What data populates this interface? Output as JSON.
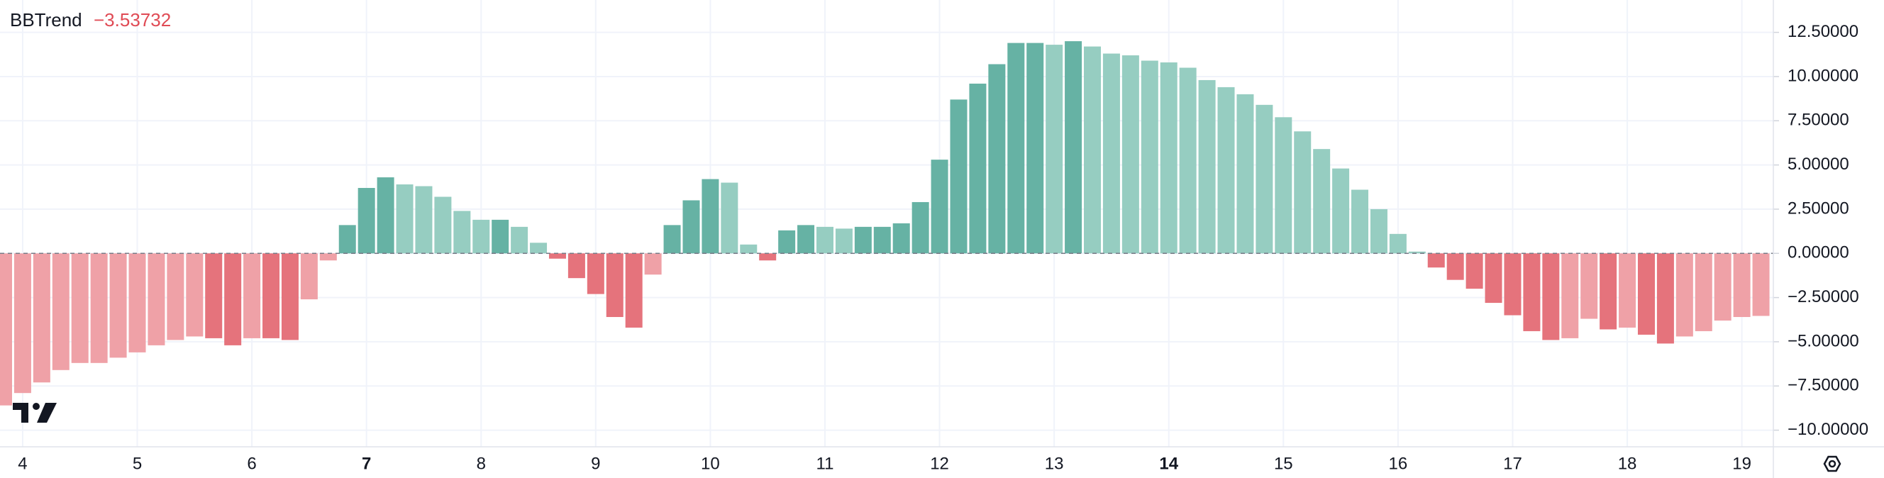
{
  "chart_data": {
    "type": "bar",
    "indicator": {
      "name": "BBTrend",
      "value": -3.53732,
      "label": "−3.53732"
    },
    "categories": [
      null,
      "4",
      null,
      null,
      null,
      null,
      null,
      "5",
      null,
      null,
      null,
      null,
      null,
      "6",
      null,
      null,
      null,
      null,
      null,
      "7",
      null,
      null,
      null,
      null,
      null,
      "8",
      null,
      null,
      null,
      null,
      null,
      "9",
      null,
      null,
      null,
      null,
      null,
      "10",
      null,
      null,
      null,
      null,
      null,
      "11",
      null,
      null,
      null,
      null,
      null,
      "12",
      null,
      null,
      null,
      null,
      null,
      "13",
      null,
      null,
      null,
      null,
      null,
      "14",
      null,
      null,
      null,
      null,
      null,
      "15",
      null,
      null,
      null,
      null,
      null,
      "16",
      null,
      null,
      null,
      null,
      null,
      "17",
      null,
      null,
      null,
      null,
      null,
      "18",
      null,
      null,
      null,
      null,
      null,
      "19",
      null
    ],
    "bold_indices": [
      19,
      61
    ],
    "values": [
      -8.6,
      -7.9,
      -7.3,
      -6.6,
      -6.2,
      -6.2,
      -5.9,
      -5.6,
      -5.2,
      -4.9,
      -4.7,
      -4.8,
      -5.2,
      -4.8,
      -4.8,
      -4.9,
      -2.6,
      -0.4,
      1.6,
      3.7,
      4.3,
      3.9,
      3.8,
      3.2,
      2.4,
      1.9,
      1.9,
      1.5,
      0.6,
      -0.3,
      -1.4,
      -2.3,
      -3.6,
      -4.2,
      -1.2,
      1.6,
      3.0,
      4.2,
      4.0,
      0.5,
      -0.4,
      1.3,
      1.6,
      1.5,
      1.4,
      1.5,
      1.5,
      1.7,
      2.9,
      5.3,
      8.7,
      9.6,
      10.7,
      11.9,
      11.9,
      11.8,
      12.0,
      11.7,
      11.3,
      11.2,
      10.9,
      10.8,
      10.5,
      9.8,
      9.4,
      9.0,
      8.4,
      7.7,
      6.9,
      5.9,
      4.8,
      3.6,
      2.5,
      1.1,
      0.1,
      -0.8,
      -1.5,
      -2.0,
      -2.8,
      -3.5,
      -4.4,
      -4.9,
      -4.8,
      -3.7,
      -4.3,
      -4.2,
      -4.6,
      -5.1,
      -4.7,
      -4.4,
      -3.8,
      -3.6,
      -3.53732
    ],
    "palette": {
      "LR": "#efa1a7",
      "DR": "#e5737c",
      "LG": "#96cdc1",
      "DG": "#66b2a4"
    },
    "color_keys": [
      "LR",
      "LR",
      "LR",
      "LR",
      "LR",
      "LR",
      "LR",
      "LR",
      "LR",
      "LR",
      "LR",
      "DR",
      "DR",
      "LR",
      "DR",
      "DR",
      "LR",
      "LR",
      "DG",
      "DG",
      "DG",
      "LG",
      "LG",
      "LG",
      "LG",
      "LG",
      "DG",
      "LG",
      "LG",
      "DR",
      "DR",
      "DR",
      "DR",
      "DR",
      "LR",
      "DG",
      "DG",
      "DG",
      "LG",
      "LG",
      "DR",
      "DG",
      "DG",
      "LG",
      "LG",
      "DG",
      "DG",
      "DG",
      "DG",
      "DG",
      "DG",
      "DG",
      "DG",
      "DG",
      "DG",
      "LG",
      "DG",
      "LG",
      "LG",
      "LG",
      "LG",
      "LG",
      "LG",
      "LG",
      "LG",
      "LG",
      "LG",
      "LG",
      "LG",
      "LG",
      "LG",
      "LG",
      "LG",
      "LG",
      "LG",
      "DR",
      "DR",
      "DR",
      "DR",
      "DR",
      "DR",
      "DR",
      "LR",
      "LR",
      "DR",
      "LR",
      "DR",
      "DR",
      "LR",
      "LR",
      "LR",
      "LR",
      "LR"
    ],
    "ylim": [
      -10.94,
      14.33
    ],
    "yticks": [
      {
        "value": 12.5,
        "label": "12.50000"
      },
      {
        "value": 10,
        "label": "10.00000"
      },
      {
        "value": 7.5,
        "label": "7.50000"
      },
      {
        "value": 5,
        "label": "5.00000"
      },
      {
        "value": 2.5,
        "label": "2.50000"
      },
      {
        "value": 0,
        "label": "0.00000"
      },
      {
        "value": -2.5,
        "label": "−2.50000"
      },
      {
        "value": -5,
        "label": "−5.00000"
      },
      {
        "value": -7.5,
        "label": "−7.50000"
      },
      {
        "value": -10,
        "label": "−10.00000"
      }
    ],
    "grid": true,
    "zero_line": true
  }
}
